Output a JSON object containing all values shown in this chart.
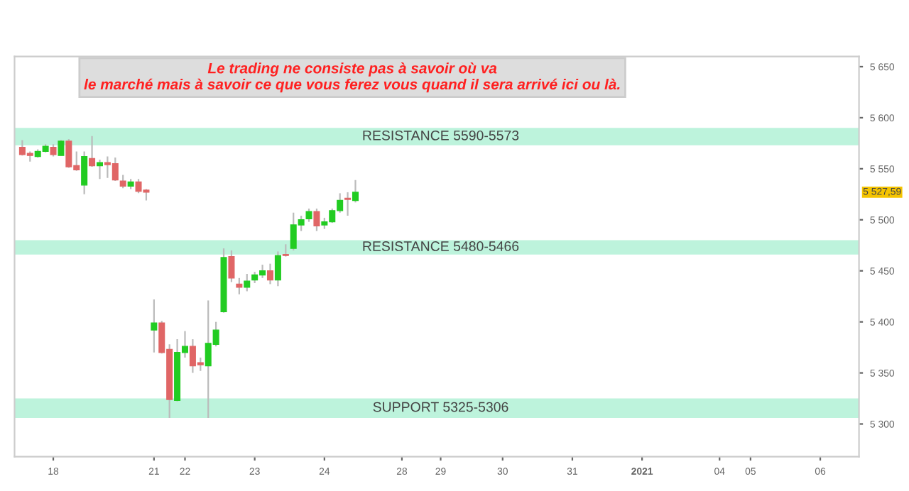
{
  "chart_data": {
    "type": "candlestick",
    "title": "Le trading ne consiste pas à savoir où va\nle marché mais à savoir ce que vous ferez vous quand il sera arrivé ici ou là.",
    "categories": [
      null,
      null,
      null,
      null,
      "18",
      null,
      null,
      null,
      null,
      null,
      null,
      null,
      null,
      null,
      null,
      null,
      null,
      "21",
      null,
      null,
      null,
      "22",
      null,
      null,
      null,
      null,
      null,
      null,
      null,
      null,
      "23",
      null,
      null,
      null,
      null,
      null,
      null,
      null,
      null,
      "24",
      null,
      null,
      null,
      null,
      null,
      null,
      null,
      null,
      null,
      "28",
      null,
      null,
      null,
      null,
      "29",
      null,
      null,
      null,
      null,
      null,
      null,
      null,
      "30",
      null,
      null,
      null,
      null,
      null,
      null,
      null,
      null,
      "31",
      null,
      null,
      null,
      null,
      null,
      null,
      null,
      null,
      "2021",
      null,
      null,
      null,
      null,
      null,
      null,
      null,
      null,
      null,
      "04",
      null,
      null,
      null,
      "05",
      null,
      null,
      null,
      null,
      null,
      null,
      null,
      null,
      "06",
      null,
      null,
      null,
      null
    ],
    "ohlc": [
      [
        5571,
        5578,
        5563,
        5564
      ],
      [
        5565,
        5567,
        5557,
        5563
      ],
      [
        5562,
        5569,
        5561,
        5567
      ],
      [
        5567,
        5574,
        5566,
        5572
      ],
      [
        5571,
        5574,
        5562,
        5564
      ],
      [
        5563,
        5578,
        5563,
        5577
      ],
      [
        5577,
        5579,
        5551,
        5552
      ],
      [
        5553,
        5567,
        5548,
        5549
      ],
      [
        5534,
        5567,
        5525,
        5562
      ],
      [
        5560,
        5582,
        5552,
        5553
      ],
      [
        5553,
        5559,
        5540,
        5556
      ],
      [
        5556,
        5562,
        5541,
        5554
      ],
      [
        5555,
        5561,
        5538,
        5539
      ],
      [
        5538,
        5544,
        5531,
        5533
      ],
      [
        5533,
        5540,
        5530,
        5537
      ],
      [
        5537,
        5540,
        5526,
        5528
      ],
      [
        5529,
        5530,
        5519,
        5527
      ],
      [
        5392,
        5422,
        5370,
        5399
      ],
      [
        5399,
        5401,
        5369,
        5370
      ],
      [
        5373,
        5378,
        5306,
        5324
      ],
      [
        5323,
        5383,
        5322,
        5370
      ],
      [
        5370,
        5391,
        5365,
        5376
      ],
      [
        5376,
        5383,
        5350,
        5357
      ],
      [
        5360,
        5365,
        5352,
        5358
      ],
      [
        5357,
        5421,
        5306,
        5379
      ],
      [
        5378,
        5400,
        5376,
        5392
      ],
      [
        5410,
        5472,
        5409,
        5463
      ],
      [
        5464,
        5470,
        5439,
        5443
      ],
      [
        5437,
        5443,
        5427,
        5434
      ],
      [
        5434,
        5447,
        5430,
        5440
      ],
      [
        5441,
        5449,
        5438,
        5446
      ],
      [
        5446,
        5456,
        5443,
        5450
      ],
      [
        5450,
        5457,
        5437,
        5441
      ],
      [
        5441,
        5469,
        5435,
        5465
      ],
      [
        5466,
        5476,
        5464,
        5465
      ],
      [
        5472,
        5507,
        5470,
        5495
      ],
      [
        5495,
        5504,
        5489,
        5500
      ],
      [
        5501,
        5511,
        5498,
        5508
      ],
      [
        5508,
        5511,
        5489,
        5494
      ],
      [
        5495,
        5502,
        5491,
        5498
      ],
      [
        5498,
        5511,
        5497,
        5509
      ],
      [
        5509,
        5526,
        5507,
        5519
      ],
      [
        5521,
        5527,
        5504,
        5520
      ],
      [
        5519,
        5539,
        5517,
        5527
      ],
      null,
      null,
      null,
      null,
      null,
      null,
      null,
      null,
      null,
      null,
      null,
      null,
      null,
      null,
      null,
      null,
      null,
      null,
      null,
      null,
      null,
      null,
      null,
      null,
      null,
      null,
      null,
      null,
      null,
      null,
      null,
      null,
      null,
      null,
      null,
      null,
      null,
      null,
      null,
      null,
      null,
      null,
      null,
      null,
      null,
      null,
      null,
      null,
      null,
      null,
      null,
      null,
      null,
      null,
      null,
      null,
      null,
      null,
      null,
      null,
      null,
      null,
      null,
      null
    ],
    "ylim": [
      5268,
      5660
    ],
    "yticks": [
      {
        "value": 5300,
        "label": "5 300"
      },
      {
        "value": 5350,
        "label": "5 350"
      },
      {
        "value": 5400,
        "label": "5 400"
      },
      {
        "value": 5450,
        "label": "5 450"
      },
      {
        "value": 5500,
        "label": "5 500"
      },
      {
        "value": 5550,
        "label": "5 550"
      },
      {
        "value": 5600,
        "label": "5 600"
      },
      {
        "value": 5650,
        "label": "5 650"
      }
    ],
    "bands": [
      {
        "axis": "y",
        "from": 5573,
        "to": 5590,
        "label": "RESISTANCE 5590-5573",
        "color": "#bdf3dc"
      },
      {
        "axis": "y",
        "from": 5466,
        "to": 5480,
        "label": "RESISTANCE 5480-5466",
        "color": "#bdf3dc"
      },
      {
        "axis": "y",
        "from": 5306,
        "to": 5325,
        "label": "SUPPORT 5325-5306",
        "color": "#bdf3dc"
      }
    ],
    "annotations": [
      "5 527,59"
    ],
    "grid": false
  }
}
